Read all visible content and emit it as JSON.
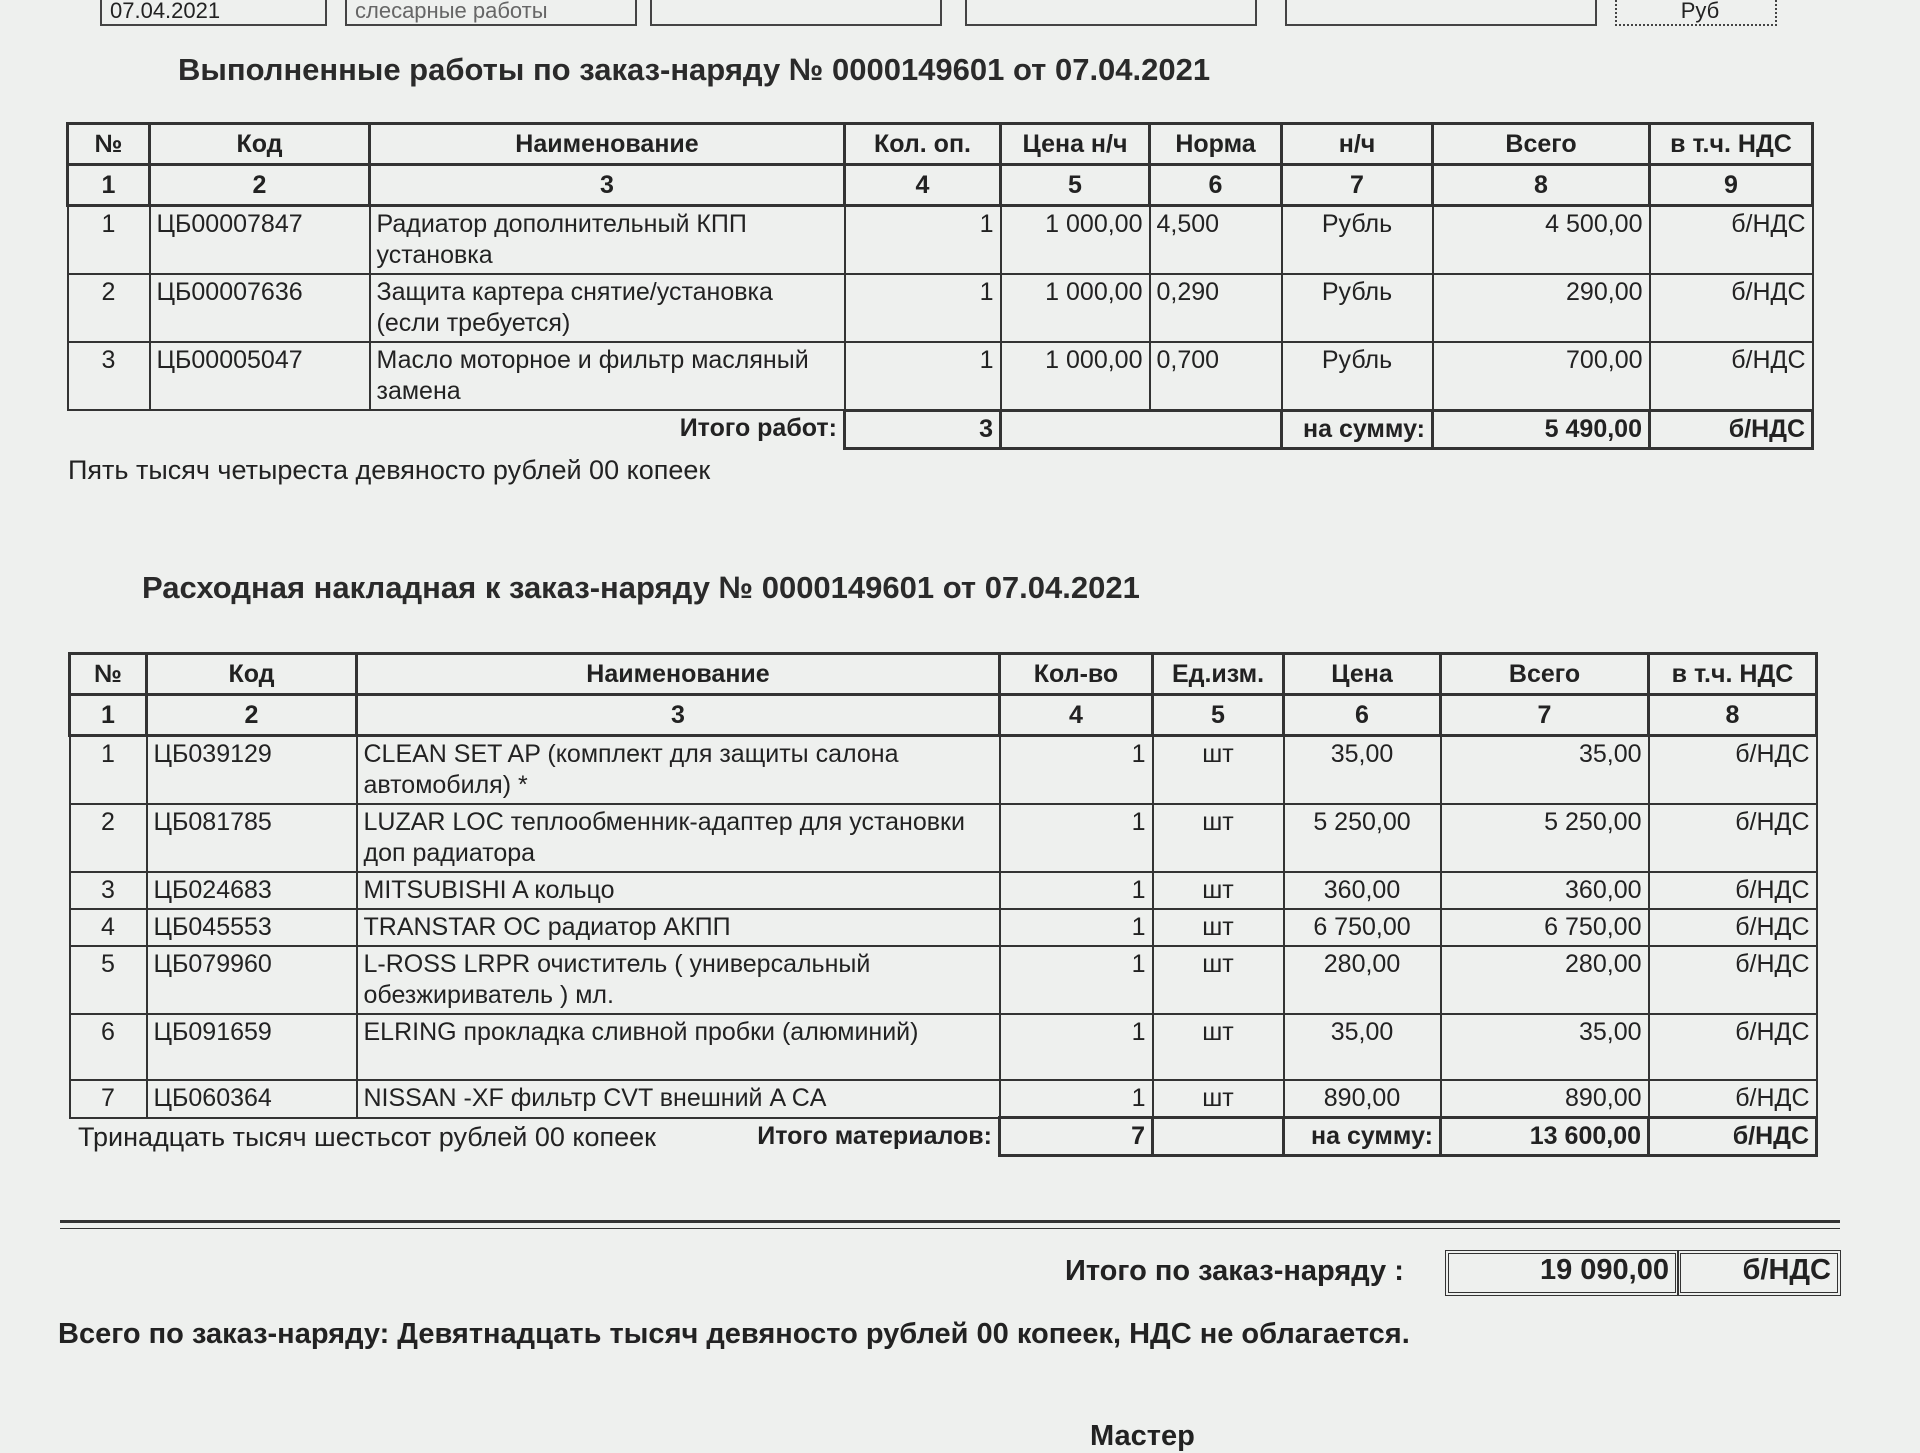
{
  "top_fields": [
    "07.04.2021",
    "слесарные работы",
    "Руб"
  ],
  "works": {
    "title": "Выполненные работы по заказ-наряду №  0000149601 от 07.04.2021",
    "header": [
      "№",
      "Код",
      "Наименование",
      "Кол. оп.",
      "Цена н/ч",
      "Норма",
      "н/ч",
      "Всего",
      "в т.ч. НДС"
    ],
    "numbers": [
      "1",
      "2",
      "3",
      "4",
      "5",
      "6",
      "7",
      "8",
      "9"
    ],
    "rows": [
      [
        "1",
        "ЦБ00007847",
        "Радиатор дополнительный КПП установка",
        "1",
        "1 000,00",
        "4,500",
        "Рубль",
        "4 500,00",
        "б/НДС"
      ],
      [
        "2",
        "ЦБ00007636",
        "Защита картера снятие/установка (если требуется)",
        "1",
        "1 000,00",
        "0,290",
        "Рубль",
        "290,00",
        "б/НДС"
      ],
      [
        "3",
        "ЦБ00005047",
        "Масло моторное и фильтр масляный замена",
        "1",
        "1 000,00",
        "0,700",
        "Рубль",
        "700,00",
        "б/НДС"
      ]
    ],
    "total_label": "Итого работ:",
    "total_count": "3",
    "sum_label": "на сумму:",
    "sum": "5 490,00",
    "vat": "б/НДС",
    "in_words": "Пять тысяч четыреста девяносто рублей 00 копеек"
  },
  "materials": {
    "title": "Расходная накладная к заказ-наряду №  0000149601 от 07.04.2021",
    "header": [
      "№",
      "Код",
      "Наименование",
      "Кол-во",
      "Ед.изм.",
      "Цена",
      "Всего",
      "в т.ч. НДС"
    ],
    "numbers": [
      "1",
      "2",
      "3",
      "4",
      "5",
      "6",
      "7",
      "8"
    ],
    "rows": [
      [
        "1",
        "ЦБ039129",
        "CLEAN SET  AP (комплект для защиты салона автомобиля) *",
        "1",
        "шт",
        "35,00",
        "35,00",
        "б/НДС"
      ],
      [
        "2",
        "ЦБ081785",
        "LUZAR LOC  теплообменник-адаптер для установки доп радиатора",
        "1",
        "шт",
        "5 250,00",
        "5 250,00",
        "б/НДС"
      ],
      [
        "3",
        "ЦБ024683",
        "MITSUBISHI A кольцо",
        "1",
        "шт",
        "360,00",
        "360,00",
        "б/НДС"
      ],
      [
        "4",
        "ЦБ045553",
        "TRANSTAR OC радиатор АКПП",
        "1",
        "шт",
        "6 750,00",
        "6 750,00",
        "б/НДС"
      ],
      [
        "5",
        "ЦБ079960",
        "L-ROSS LRPR очиститель ( универсальный обезжириватель )  мл.",
        "1",
        "шт",
        "280,00",
        "280,00",
        "б/НДС"
      ],
      [
        "6",
        "ЦБ091659",
        "ELRING  прокладка сливной пробки (алюминий)",
        "1",
        "шт",
        "35,00",
        "35,00",
        "б/НДС"
      ],
      [
        "7",
        "ЦБ060364",
        "NISSAN -XF фильтр CVT внешний A CA",
        "1",
        "шт",
        "890,00",
        "890,00",
        "б/НДС"
      ]
    ],
    "total_label": "Итого материалов:",
    "total_count": "7",
    "sum_label": "на сумму:",
    "sum": "13 600,00",
    "vat": "б/НДС",
    "in_words": "Тринадцать тысяч шестьсот рублей 00 копеек"
  },
  "grand_total": {
    "label": "Итого по заказ-наряду :",
    "sum": "19 090,00",
    "vat": "б/НДС"
  },
  "summary": "Всего по заказ-наряду: Девятнадцать тысяч девяносто рублей 00 копеек, НДС не облагается.",
  "footer": "Мастер"
}
